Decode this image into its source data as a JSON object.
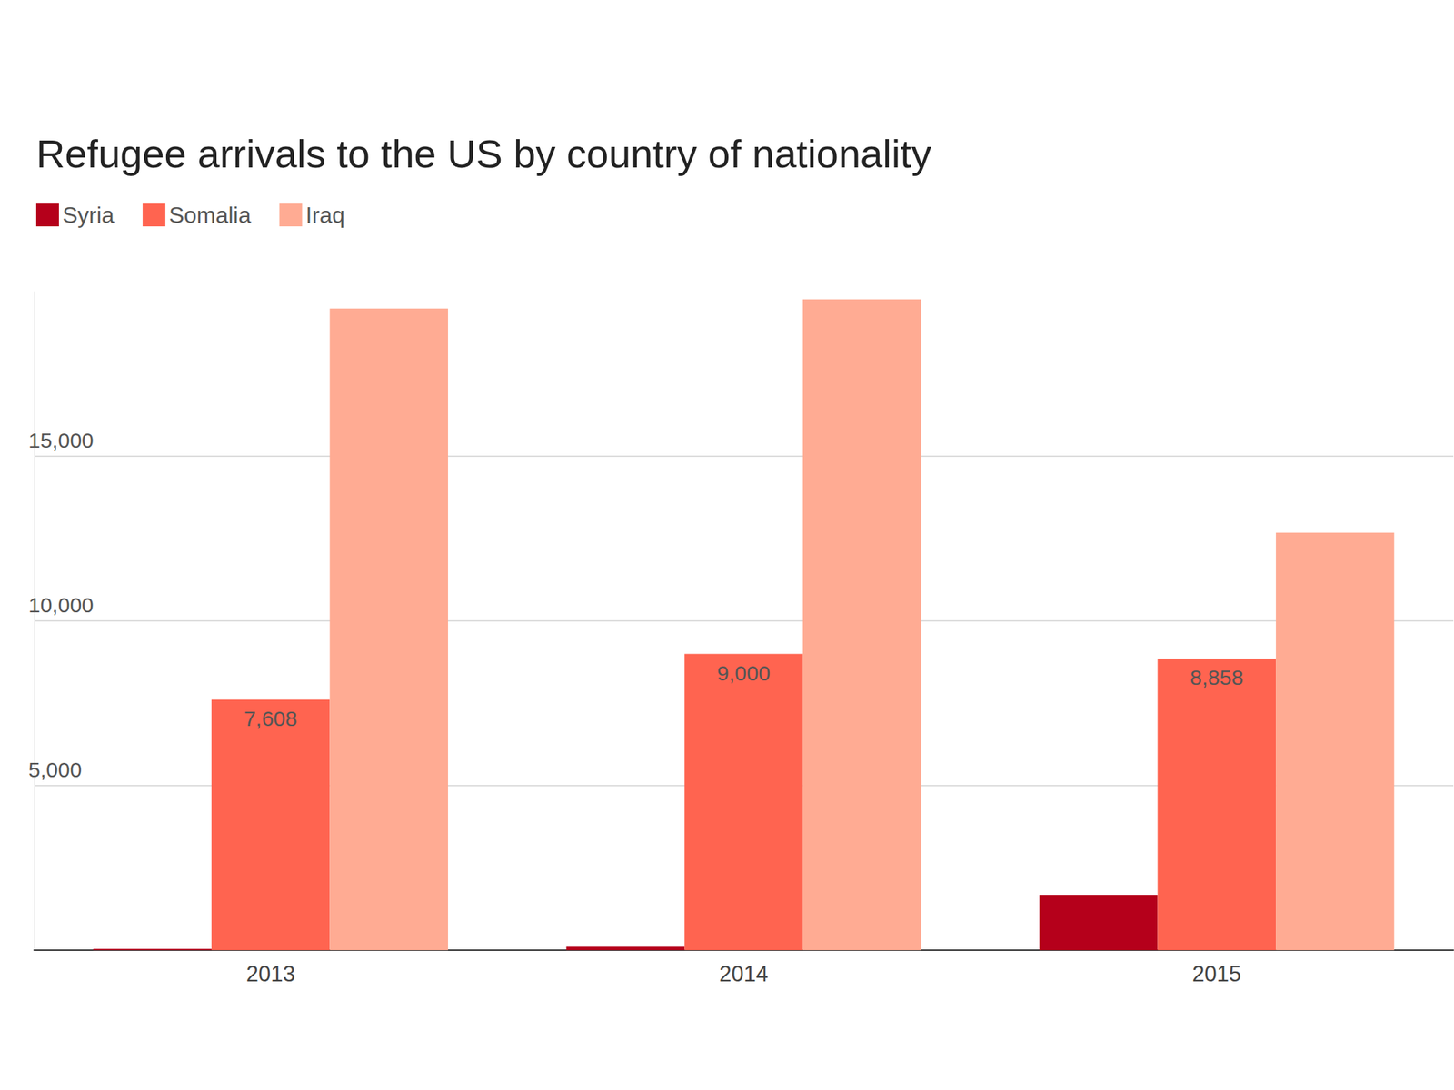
{
  "chart_data": {
    "type": "bar",
    "title": "Refugee arrivals to the US by country of nationality",
    "categories": [
      "2013",
      "2014",
      "2015"
    ],
    "series": [
      {
        "name": "Syria",
        "color": "#b5001b",
        "values": [
          36,
          105,
          1682
        ]
      },
      {
        "name": "Somalia",
        "color": "#ff6450",
        "values": [
          7608,
          9000,
          8858
        ],
        "data_labels": true,
        "value_labels": [
          "7,608",
          "9,000",
          "8,858"
        ]
      },
      {
        "name": "Iraq",
        "color": "#ffab93",
        "values": [
          19488,
          19769,
          12676
        ]
      }
    ],
    "ylim": [
      0,
      20000
    ],
    "yticks": [
      {
        "value": 5000,
        "label": "5,000"
      },
      {
        "value": 10000,
        "label": "10,000"
      },
      {
        "value": 15000,
        "label": "15,000"
      }
    ],
    "grid": true,
    "legend": "top-left"
  }
}
